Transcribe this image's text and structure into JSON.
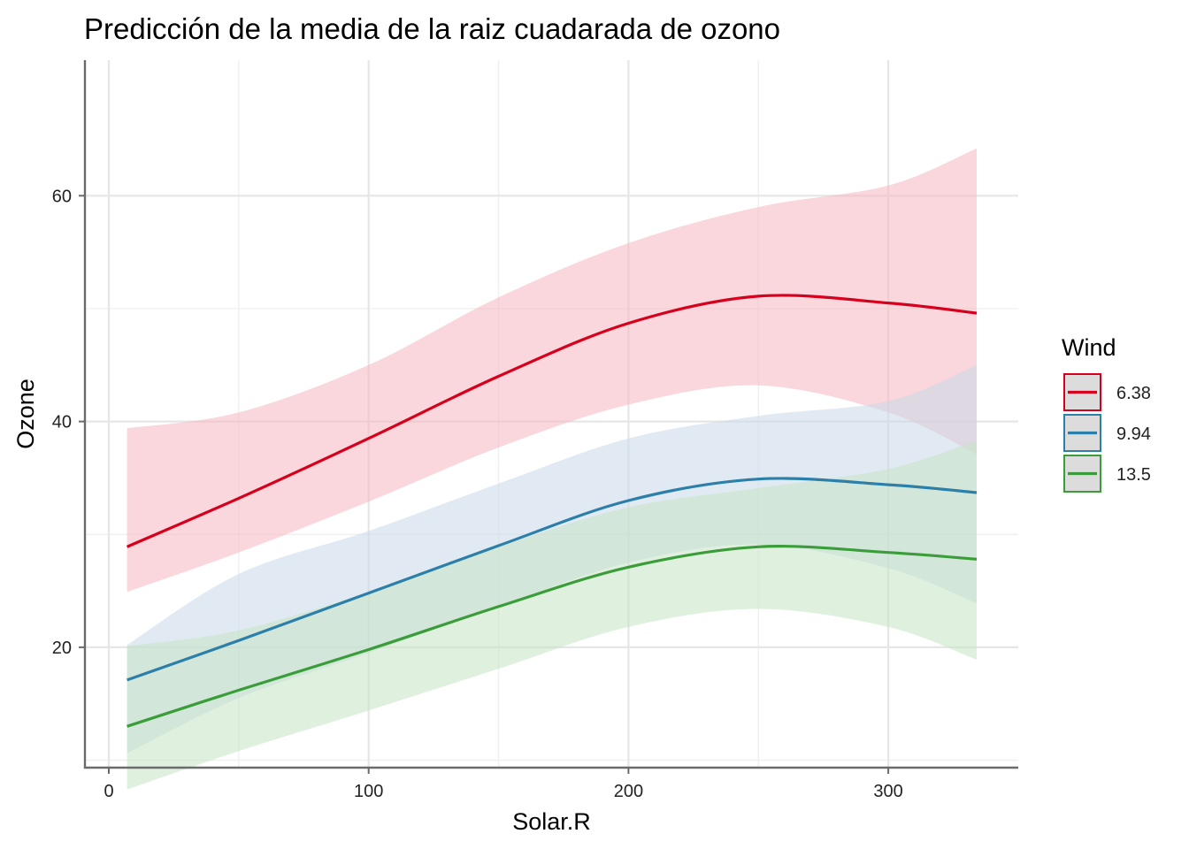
{
  "chart_data": {
    "type": "line",
    "title": "Predicción de la media de la raiz cuadarada de ozono",
    "xlabel": "Solar.R",
    "ylabel": "Ozone",
    "xlim": [
      -10,
      350
    ],
    "ylim": [
      5,
      65
    ],
    "x_ticks": [
      0,
      100,
      200,
      300
    ],
    "y_ticks": [
      20,
      40,
      60
    ],
    "x_minor": [
      50,
      150,
      250
    ],
    "y_minor": [
      10,
      30,
      50
    ],
    "grid": true,
    "legend": {
      "title": "Wind",
      "position": "right"
    },
    "x": [
      7,
      50,
      100,
      150,
      200,
      250,
      300,
      334
    ],
    "series": [
      {
        "name": "6.38",
        "color": "#d7001c",
        "fill": "#f4b6bf",
        "values": [
          28.9,
          33.2,
          38.5,
          44.0,
          48.7,
          51.1,
          50.5,
          49.6
        ],
        "lower": [
          24.9,
          28.4,
          32.9,
          37.7,
          41.5,
          43.2,
          40.8,
          37.1
        ],
        "upper": [
          39.4,
          40.8,
          45.0,
          51.0,
          55.8,
          59.0,
          60.9,
          64.2
        ]
      },
      {
        "name": "9.94",
        "color": "#2c7fa8",
        "fill": "#c9d8ea",
        "values": [
          17.1,
          20.6,
          24.8,
          29.0,
          33.0,
          34.9,
          34.4,
          33.7
        ],
        "lower": [
          10.6,
          15.5,
          19.5,
          23.6,
          27.5,
          29.1,
          27.0,
          23.9
        ],
        "upper": [
          20.2,
          26.5,
          30.3,
          34.5,
          38.5,
          40.5,
          41.8,
          45.0
        ]
      },
      {
        "name": "13.5",
        "color": "#3a9d3a",
        "fill": "#c7e4c5",
        "values": [
          13.0,
          16.2,
          19.8,
          23.6,
          27.1,
          28.9,
          28.4,
          27.8
        ],
        "lower": [
          7.4,
          10.8,
          14.4,
          18.1,
          21.8,
          23.4,
          21.8,
          18.9
        ],
        "upper": [
          20.1,
          21.5,
          24.9,
          28.9,
          32.4,
          34.1,
          35.8,
          38.3
        ]
      }
    ]
  }
}
